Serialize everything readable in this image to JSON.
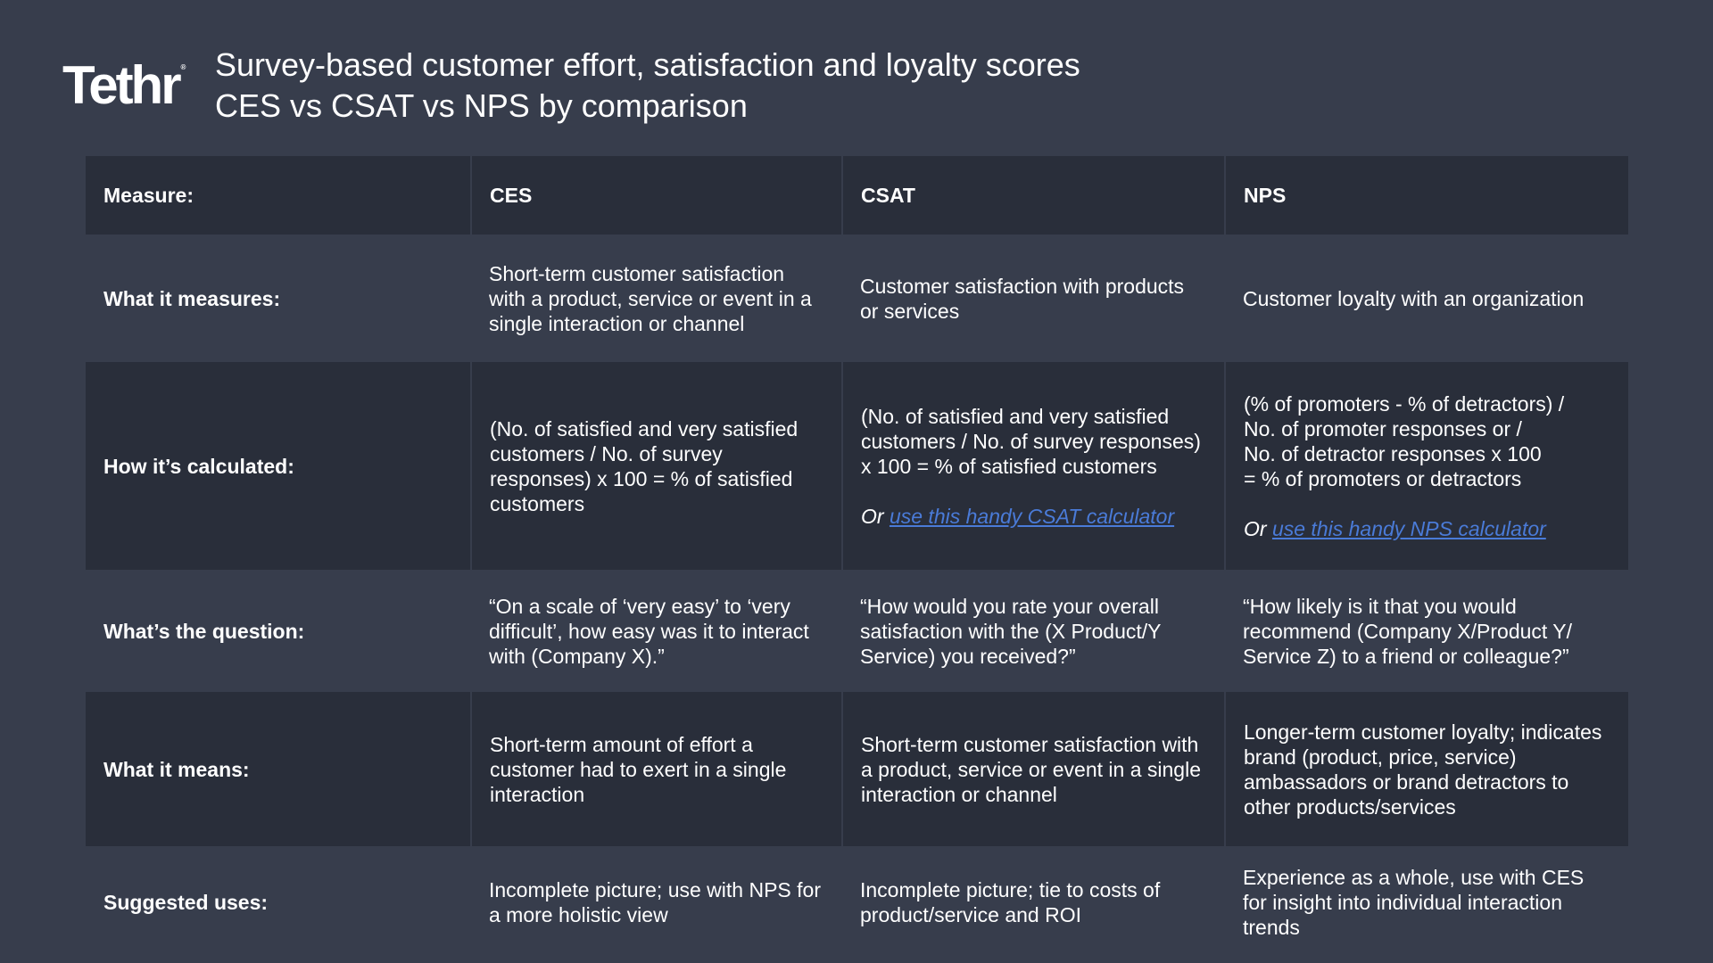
{
  "header": {
    "logo": "Tethr",
    "logo_mark": "®",
    "title_line1": "Survey-based customer effort, satisfaction and loyalty scores",
    "title_line2": "CES vs CSAT vs NPS by comparison"
  },
  "colors": {
    "background": "#373d4c",
    "dark_row": "#292e3a",
    "link": "#4a7bd8",
    "text": "#ffffff"
  },
  "table": {
    "columns": [
      "Measure:",
      "CES",
      "CSAT",
      "NPS"
    ],
    "rows": [
      {
        "label": "What it measures:",
        "ces": "Short-term customer satisfaction with a product, service or event in a single interaction or channel",
        "csat": "Customer satisfaction with products or services",
        "nps": "Customer loyalty with an organization"
      },
      {
        "label": "How it’s calculated:",
        "ces": "(No. of satisfied and very satisfied customers / No. of survey responses) x 100 = % of satisfied customers",
        "csat": "(No. of satisfied and very satisfied customers / No. of survey responses) x 100 = % of satisfied customers",
        "csat_or": "Or ",
        "csat_link": "use this handy CSAT calculator",
        "nps": "(% of promoters - % of detractors) /\nNo. of promoter responses or /\nNo. of detractor responses x 100\n= % of promoters or detractors",
        "nps_or": "Or ",
        "nps_link": "use this handy NPS calculator"
      },
      {
        "label": "What’s the question:",
        "ces": "“On a scale of ‘very easy’ to ‘very difficult’, how easy was it to interact with (Company X).”",
        "csat": "“How would you rate your overall satisfaction with the (X Product/Y Service) you received?”",
        "nps": "“How likely is it that you would recommend (Company X/Product Y/ Service Z) to a friend or colleague?”"
      },
      {
        "label": "What it means:",
        "ces": "Short-term amount of effort a customer had to exert in a single  interaction",
        "csat": "Short-term customer satisfaction with a product, service or event in a single interaction or channel",
        "nps": "Longer-term customer loyalty; indicates brand (product, price, service) ambassadors or brand detractors to other products/services"
      },
      {
        "label": "Suggested uses:",
        "ces": "Incomplete picture; use with NPS for a more holistic view",
        "csat": "Incomplete picture; tie to costs of product/service and ROI",
        "nps": "Experience as a whole, use with CES for insight into individual interaction trends"
      }
    ]
  }
}
